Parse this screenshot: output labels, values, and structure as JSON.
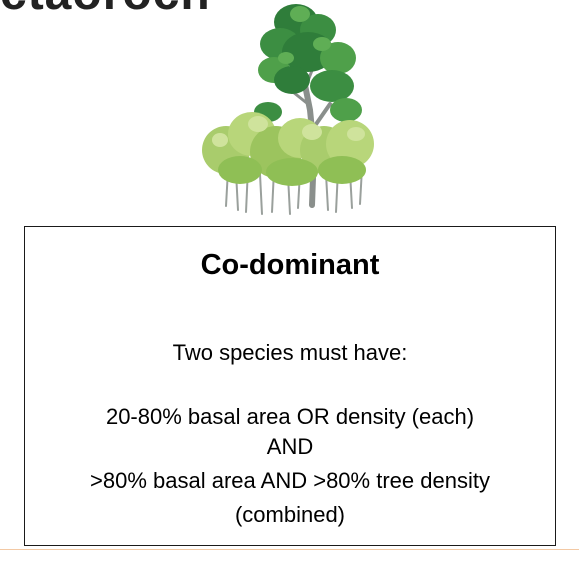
{
  "header": {
    "title_fragment": "ctaoroch"
  },
  "illustration": {
    "icon": "co-dominant-trees-illustration",
    "colors": {
      "canopy_dark": "#2f7d3a",
      "canopy_mid": "#4fa04a",
      "shrub_light": "#b8d67a",
      "shrub_mid": "#8fbf55",
      "trunk": "#8a8f8c"
    }
  },
  "info_box": {
    "heading": "Co-dominant",
    "intro": "Two species must have:",
    "criterion_1": "20-80% basal area OR density (each)",
    "connector": "AND",
    "criterion_2": ">80% basal area AND >80% tree density",
    "criterion_2_note": "(combined)"
  },
  "colors": {
    "text": "#000000",
    "box_border": "#1a1a1a",
    "accent_rule": "#f3c9a4"
  }
}
